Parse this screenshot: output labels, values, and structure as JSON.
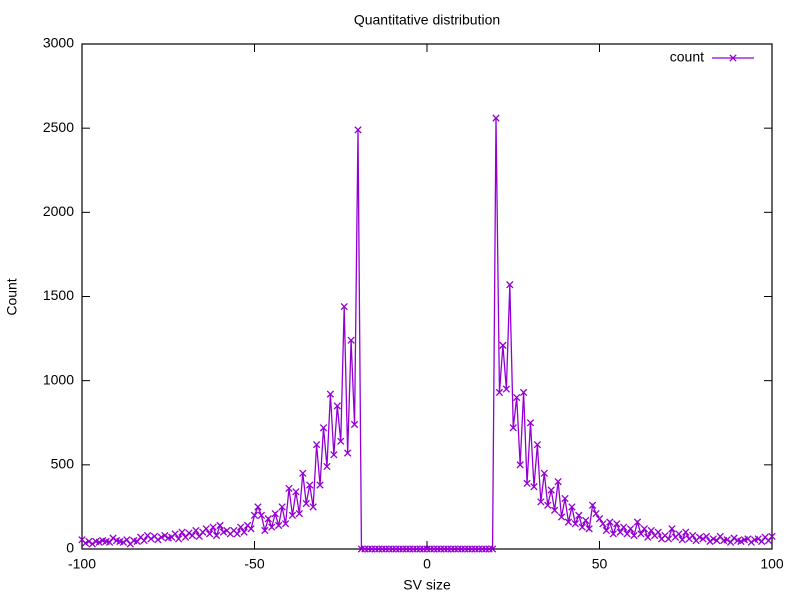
{
  "chart_data": {
    "type": "line",
    "title": "Quantitative distribution",
    "x_label": "SV size",
    "y_label": "Count",
    "xlim": [
      -100,
      100
    ],
    "ylim": [
      0,
      3000
    ],
    "xticks": [
      -100,
      -50,
      0,
      50,
      100
    ],
    "yticks": [
      0,
      500,
      1000,
      1500,
      2000,
      2500,
      3000
    ],
    "legend": "top right",
    "marker": "x",
    "x": [
      -100,
      -99,
      -98,
      -97,
      -96,
      -95,
      -94,
      -93,
      -92,
      -91,
      -90,
      -89,
      -88,
      -87,
      -86,
      -85,
      -84,
      -83,
      -82,
      -81,
      -80,
      -79,
      -78,
      -77,
      -76,
      -75,
      -74,
      -73,
      -72,
      -71,
      -70,
      -69,
      -68,
      -67,
      -66,
      -65,
      -64,
      -63,
      -62,
      -61,
      -60,
      -59,
      -58,
      -57,
      -56,
      -55,
      -54,
      -53,
      -52,
      -51,
      -50,
      -49,
      -48,
      -47,
      -46,
      -45,
      -44,
      -43,
      -42,
      -41,
      -40,
      -39,
      -38,
      -37,
      -36,
      -35,
      -34,
      -33,
      -32,
      -31,
      -30,
      -29,
      -28,
      -27,
      -26,
      -25,
      -24,
      -23,
      -22,
      -21,
      -20,
      -19,
      -18,
      -17,
      -16,
      -15,
      -14,
      -13,
      -12,
      -11,
      -10,
      -9,
      -8,
      -7,
      -6,
      -5,
      -4,
      -3,
      -2,
      -1,
      0,
      1,
      2,
      3,
      4,
      5,
      6,
      7,
      8,
      9,
      10,
      11,
      12,
      13,
      14,
      15,
      16,
      17,
      18,
      19,
      20,
      21,
      22,
      23,
      24,
      25,
      26,
      27,
      28,
      29,
      30,
      31,
      32,
      33,
      34,
      35,
      36,
      37,
      38,
      39,
      40,
      41,
      42,
      43,
      44,
      45,
      46,
      47,
      48,
      49,
      50,
      51,
      52,
      53,
      54,
      55,
      56,
      57,
      58,
      59,
      60,
      61,
      62,
      63,
      64,
      65,
      66,
      67,
      68,
      69,
      70,
      71,
      72,
      73,
      74,
      75,
      76,
      77,
      78,
      79,
      80,
      81,
      82,
      83,
      84,
      85,
      86,
      87,
      88,
      89,
      90,
      91,
      92,
      93,
      94,
      95,
      96,
      97,
      98,
      99,
      100
    ],
    "series": [
      {
        "name": "count",
        "color": "#9400d3",
        "values": [
          55,
          35,
          45,
          30,
          45,
          40,
          50,
          45,
          40,
          65,
          50,
          45,
          40,
          55,
          30,
          50,
          45,
          70,
          50,
          80,
          60,
          75,
          55,
          70,
          80,
          65,
          70,
          90,
          60,
          100,
          70,
          95,
          80,
          110,
          75,
          100,
          120,
          90,
          130,
          80,
          140,
          100,
          110,
          90,
          110,
          90,
          130,
          100,
          140,
          120,
          200,
          250,
          200,
          110,
          180,
          130,
          210,
          140,
          250,
          150,
          360,
          200,
          340,
          210,
          450,
          270,
          380,
          250,
          620,
          380,
          720,
          490,
          920,
          560,
          850,
          640,
          1440,
          570,
          1240,
          740,
          2490,
          0,
          0,
          0,
          0,
          0,
          0,
          0,
          0,
          0,
          0,
          0,
          0,
          0,
          0,
          0,
          0,
          0,
          0,
          0,
          0,
          0,
          0,
          0,
          0,
          0,
          0,
          0,
          0,
          0,
          0,
          0,
          0,
          0,
          0,
          0,
          0,
          0,
          0,
          0,
          2560,
          930,
          1210,
          950,
          1570,
          720,
          900,
          500,
          930,
          390,
          750,
          370,
          620,
          280,
          450,
          260,
          350,
          230,
          400,
          190,
          300,
          160,
          250,
          150,
          200,
          130,
          170,
          120,
          260,
          210,
          180,
          150,
          110,
          160,
          90,
          150,
          100,
          130,
          90,
          120,
          80,
          160,
          90,
          120,
          70,
          110,
          80,
          100,
          60,
          80,
          60,
          120,
          70,
          90,
          55,
          100,
          60,
          80,
          50,
          70,
          60,
          75,
          45,
          60,
          50,
          75,
          50,
          55,
          40,
          65,
          50,
          45,
          55,
          60,
          40,
          55,
          60,
          45,
          70,
          50,
          75
        ]
      }
    ]
  }
}
